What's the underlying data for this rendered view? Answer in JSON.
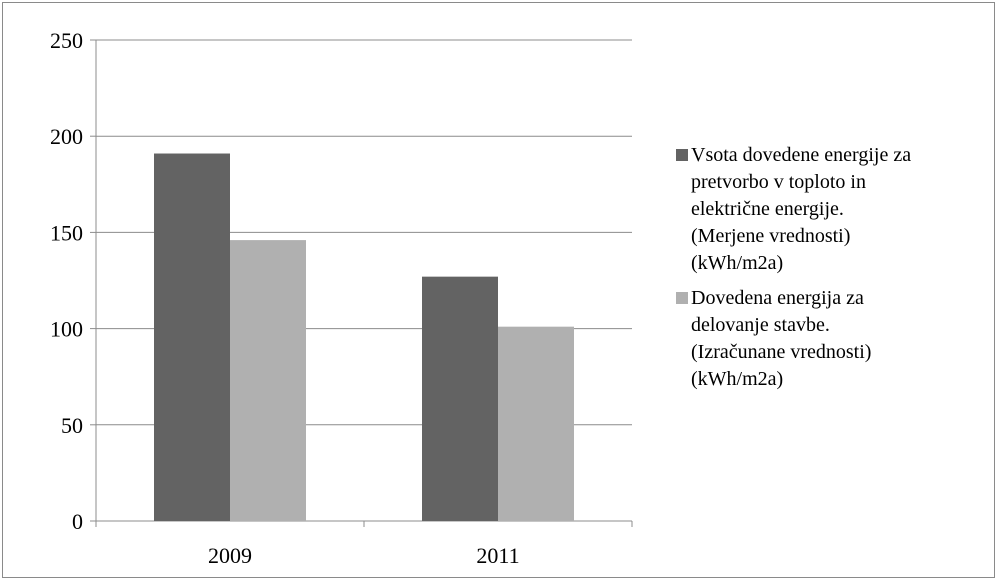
{
  "chart_data": {
    "type": "bar",
    "categories": [
      "2009",
      "2011"
    ],
    "series": [
      {
        "name": "Vsota dovedene energije za pretvorbo v toploto in električne energije. (Merjene vrednosti) (kWh/m2a)",
        "legend_lines": [
          "Vsota dovedene energije za",
          "pretvorbo v toploto in",
          "električne energije.",
          "(Merjene vrednosti)",
          "(kWh/m2a)"
        ],
        "color": "#636363",
        "values": [
          191,
          127
        ]
      },
      {
        "name": "Dovedena energija za delovanje stavbe. (Izračunane vrednosti) (kWh/m2a)",
        "legend_lines": [
          "Dovedena energija za",
          "delovanje stavbe.",
          "(Izračunane vrednosti)",
          "(kWh/m2a)"
        ],
        "color": "#b0b0b0",
        "values": [
          146,
          101
        ]
      }
    ],
    "yticks": [
      "0",
      "50",
      "100",
      "150",
      "200",
      "250"
    ],
    "ylim": [
      0,
      250
    ],
    "grid": true,
    "legend_position": "right"
  }
}
